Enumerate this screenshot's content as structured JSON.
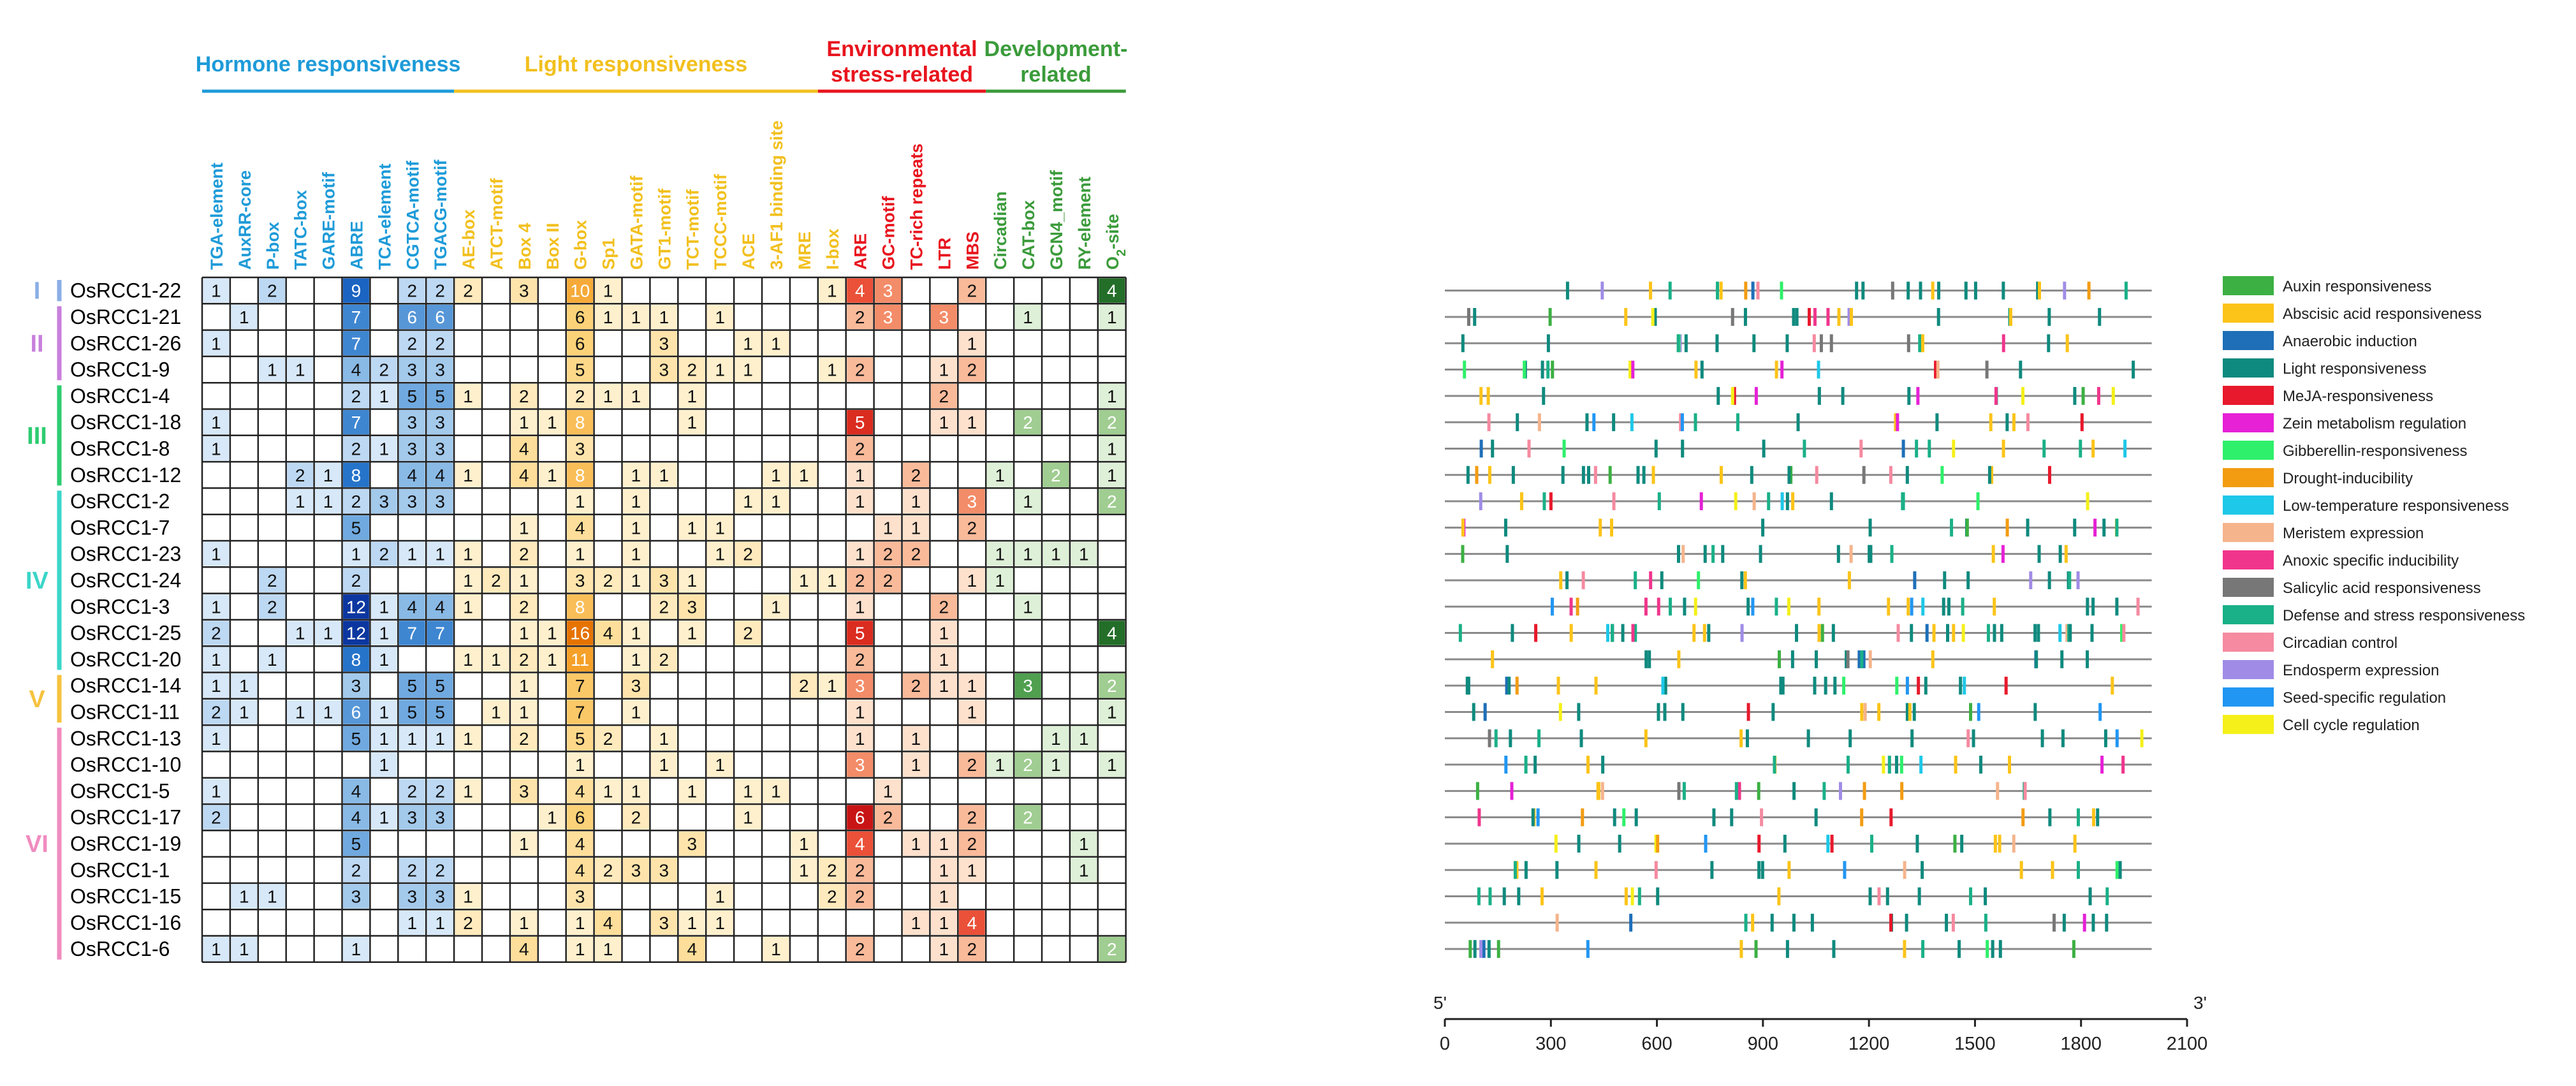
{
  "colors": {
    "hormone": "#1e9bd8",
    "light": "#f2c01e",
    "env": "#e8141e",
    "dev": "#3b9b3b",
    "row_text": "#000000"
  },
  "chart_data": {
    "type": "heatmap",
    "title": "",
    "categories": [
      {
        "name": "Hormone responsiveness",
        "lines": [
          "Hormone responsiveness"
        ],
        "color": "#1e9bd8",
        "start": 0,
        "end": 9
      },
      {
        "name": "Light responsiveness",
        "lines": [
          "Light responsiveness"
        ],
        "color": "#f2c01e",
        "start": 9,
        "end": 22
      },
      {
        "name": "Environmental stress-related",
        "lines": [
          "Environmental",
          "stress-related"
        ],
        "color": "#e8141e",
        "start": 22,
        "end": 28
      },
      {
        "name": "Development-related",
        "lines": [
          "Development-",
          "related"
        ],
        "color": "#3b9b3b",
        "start": 28,
        "end": 33
      }
    ],
    "columns": [
      {
        "label": "TGA-element",
        "group": "hormone"
      },
      {
        "label": "AuxRR-core",
        "group": "hormone"
      },
      {
        "label": "P-box",
        "group": "hormone"
      },
      {
        "label": "TATC-box",
        "group": "hormone"
      },
      {
        "label": "GARE-motif",
        "group": "hormone"
      },
      {
        "label": "ABRE",
        "group": "hormone"
      },
      {
        "label": "TCA-element",
        "group": "hormone"
      },
      {
        "label": "CGTCA-motif",
        "group": "hormone"
      },
      {
        "label": "TGACG-motif",
        "group": "hormone"
      },
      {
        "label": "AE-box",
        "group": "light"
      },
      {
        "label": "ATCT-motif",
        "group": "light"
      },
      {
        "label": "Box 4",
        "group": "light"
      },
      {
        "label": "Box II",
        "group": "light"
      },
      {
        "label": "G-box",
        "group": "light"
      },
      {
        "label": "Sp1",
        "group": "light"
      },
      {
        "label": "GATA-motif",
        "group": "light"
      },
      {
        "label": "GT1-motif",
        "group": "light"
      },
      {
        "label": "TCT-motif",
        "group": "light"
      },
      {
        "label": "TCCC-motif",
        "group": "light"
      },
      {
        "label": "ACE",
        "group": "light"
      },
      {
        "label": "3-AF1 binding site",
        "group": "light"
      },
      {
        "label": "MRE",
        "group": "light"
      },
      {
        "label": "I-box",
        "group": "light"
      },
      {
        "label": "ARE",
        "group": "env"
      },
      {
        "label": "GC-motif",
        "group": "env"
      },
      {
        "label": "TC-rich repeats",
        "group": "env"
      },
      {
        "label": "LTR",
        "group": "env"
      },
      {
        "label": "MBS",
        "group": "env"
      },
      {
        "label": "Circadian",
        "group": "dev"
      },
      {
        "label": "CAT-box",
        "group": "dev"
      },
      {
        "label": "GCN4_motif",
        "group": "dev"
      },
      {
        "label": "RY-element",
        "group": "dev"
      },
      {
        "label": "O₂-site",
        "group": "dev"
      }
    ],
    "groups": [
      {
        "label": "I",
        "start": 0,
        "end": 1,
        "color": "#8aaee6"
      },
      {
        "label": "II",
        "start": 1,
        "end": 4,
        "color": "#c880dc"
      },
      {
        "label": "III",
        "start": 4,
        "end": 8,
        "color": "#2ecc71"
      },
      {
        "label": "IV",
        "start": 8,
        "end": 15,
        "color": "#3ad6c8"
      },
      {
        "label": "V",
        "start": 15,
        "end": 17,
        "color": "#f6c23e"
      },
      {
        "label": "VI",
        "start": 17,
        "end": 26,
        "color": "#f08cc0"
      }
    ],
    "rows": [
      {
        "gene": "OsRCC1-22",
        "values": [
          1,
          0,
          2,
          0,
          0,
          9,
          0,
          2,
          2,
          2,
          0,
          3,
          0,
          10,
          1,
          0,
          0,
          0,
          0,
          0,
          0,
          0,
          1,
          4,
          3,
          0,
          0,
          2,
          0,
          0,
          0,
          0,
          4
        ]
      },
      {
        "gene": "OsRCC1-21",
        "values": [
          0,
          1,
          0,
          0,
          0,
          7,
          0,
          6,
          6,
          0,
          0,
          0,
          0,
          6,
          1,
          1,
          1,
          0,
          1,
          0,
          0,
          0,
          0,
          2,
          3,
          0,
          3,
          0,
          0,
          1,
          0,
          0,
          1
        ]
      },
      {
        "gene": "OsRCC1-26",
        "values": [
          1,
          0,
          0,
          0,
          0,
          7,
          0,
          2,
          2,
          0,
          0,
          0,
          0,
          6,
          0,
          0,
          3,
          0,
          0,
          1,
          1,
          0,
          0,
          0,
          0,
          0,
          0,
          1,
          0,
          0,
          0,
          0,
          0
        ]
      },
      {
        "gene": "OsRCC1-9",
        "values": [
          0,
          0,
          1,
          1,
          0,
          4,
          2,
          3,
          3,
          0,
          0,
          0,
          0,
          5,
          0,
          0,
          3,
          2,
          1,
          1,
          0,
          0,
          1,
          2,
          0,
          0,
          1,
          2,
          0,
          0,
          0,
          0,
          0
        ]
      },
      {
        "gene": "OsRCC1-4",
        "values": [
          0,
          0,
          0,
          0,
          0,
          2,
          1,
          5,
          5,
          1,
          0,
          2,
          0,
          2,
          1,
          1,
          0,
          1,
          0,
          0,
          0,
          0,
          0,
          0,
          0,
          0,
          2,
          0,
          0,
          0,
          0,
          0,
          1
        ]
      },
      {
        "gene": "OsRCC1-18",
        "values": [
          1,
          0,
          0,
          0,
          0,
          7,
          0,
          3,
          3,
          0,
          0,
          1,
          1,
          8,
          0,
          0,
          0,
          1,
          0,
          0,
          0,
          0,
          0,
          5,
          0,
          0,
          1,
          1,
          0,
          2,
          0,
          0,
          2
        ]
      },
      {
        "gene": "OsRCC1-8",
        "values": [
          1,
          0,
          0,
          0,
          0,
          2,
          1,
          3,
          3,
          0,
          0,
          4,
          0,
          3,
          0,
          0,
          0,
          0,
          0,
          0,
          0,
          0,
          0,
          2,
          0,
          0,
          0,
          0,
          0,
          0,
          0,
          0,
          1
        ]
      },
      {
        "gene": "OsRCC1-12",
        "values": [
          0,
          0,
          0,
          2,
          1,
          8,
          0,
          4,
          4,
          1,
          0,
          4,
          1,
          8,
          0,
          1,
          1,
          0,
          0,
          0,
          1,
          1,
          0,
          1,
          0,
          2,
          0,
          0,
          1,
          0,
          2,
          0,
          1
        ]
      },
      {
        "gene": "OsRCC1-2",
        "values": [
          0,
          0,
          0,
          1,
          1,
          2,
          3,
          3,
          3,
          0,
          0,
          0,
          0,
          1,
          0,
          1,
          0,
          0,
          0,
          1,
          1,
          0,
          0,
          1,
          0,
          1,
          0,
          3,
          0,
          1,
          0,
          0,
          2
        ]
      },
      {
        "gene": "OsRCC1-7",
        "values": [
          0,
          0,
          0,
          0,
          0,
          5,
          0,
          0,
          0,
          0,
          0,
          1,
          0,
          4,
          0,
          1,
          0,
          1,
          1,
          0,
          0,
          0,
          0,
          0,
          1,
          1,
          0,
          2,
          0,
          0,
          0,
          0,
          0
        ]
      },
      {
        "gene": "OsRCC1-23",
        "values": [
          1,
          0,
          0,
          0,
          0,
          1,
          2,
          1,
          1,
          1,
          0,
          2,
          0,
          1,
          0,
          1,
          0,
          0,
          1,
          2,
          0,
          0,
          0,
          1,
          2,
          2,
          0,
          0,
          1,
          1,
          1,
          1,
          0
        ]
      },
      {
        "gene": "OsRCC1-24",
        "values": [
          0,
          0,
          2,
          0,
          0,
          2,
          0,
          0,
          0,
          1,
          2,
          1,
          0,
          3,
          2,
          1,
          3,
          1,
          0,
          0,
          0,
          1,
          1,
          2,
          2,
          0,
          0,
          1,
          1,
          0,
          0,
          0,
          0
        ]
      },
      {
        "gene": "OsRCC1-3",
        "values": [
          1,
          0,
          2,
          0,
          0,
          12,
          1,
          4,
          4,
          1,
          0,
          2,
          0,
          8,
          0,
          0,
          2,
          3,
          0,
          0,
          1,
          0,
          0,
          1,
          0,
          0,
          2,
          0,
          0,
          1,
          0,
          0,
          0
        ]
      },
      {
        "gene": "OsRCC1-25",
        "values": [
          2,
          0,
          0,
          1,
          1,
          12,
          1,
          7,
          7,
          0,
          0,
          1,
          1,
          16,
          4,
          1,
          0,
          1,
          0,
          2,
          0,
          0,
          0,
          5,
          0,
          0,
          1,
          0,
          0,
          0,
          0,
          0,
          4
        ]
      },
      {
        "gene": "OsRCC1-20",
        "values": [
          1,
          0,
          1,
          0,
          0,
          8,
          1,
          0,
          0,
          1,
          1,
          2,
          1,
          11,
          0,
          1,
          2,
          0,
          0,
          0,
          0,
          0,
          0,
          2,
          0,
          0,
          1,
          0,
          0,
          0,
          0,
          0,
          0
        ]
      },
      {
        "gene": "OsRCC1-14",
        "values": [
          1,
          1,
          0,
          0,
          0,
          3,
          0,
          5,
          5,
          0,
          0,
          1,
          0,
          7,
          0,
          3,
          0,
          0,
          0,
          0,
          0,
          2,
          1,
          3,
          0,
          2,
          1,
          1,
          0,
          3,
          0,
          0,
          2
        ]
      },
      {
        "gene": "OsRCC1-11",
        "values": [
          2,
          1,
          0,
          1,
          1,
          6,
          1,
          5,
          5,
          0,
          1,
          1,
          0,
          7,
          0,
          1,
          0,
          0,
          0,
          0,
          0,
          0,
          0,
          1,
          0,
          0,
          0,
          1,
          0,
          0,
          0,
          0,
          1
        ]
      },
      {
        "gene": "OsRCC1-13",
        "values": [
          1,
          0,
          0,
          0,
          0,
          5,
          1,
          1,
          1,
          1,
          0,
          2,
          0,
          5,
          2,
          0,
          1,
          0,
          0,
          0,
          0,
          0,
          0,
          1,
          0,
          1,
          0,
          0,
          0,
          0,
          1,
          1,
          0
        ]
      },
      {
        "gene": "OsRCC1-10",
        "values": [
          0,
          0,
          0,
          0,
          0,
          0,
          1,
          0,
          0,
          0,
          0,
          0,
          0,
          1,
          0,
          0,
          1,
          0,
          1,
          0,
          0,
          0,
          0,
          3,
          0,
          1,
          0,
          2,
          1,
          2,
          1,
          0,
          1
        ]
      },
      {
        "gene": "OsRCC1-5",
        "values": [
          1,
          0,
          0,
          0,
          0,
          4,
          0,
          2,
          2,
          1,
          0,
          3,
          0,
          4,
          1,
          1,
          0,
          1,
          0,
          1,
          1,
          0,
          0,
          0,
          1,
          0,
          0,
          0,
          0,
          0,
          0,
          0,
          0
        ]
      },
      {
        "gene": "OsRCC1-17",
        "values": [
          2,
          0,
          0,
          0,
          0,
          4,
          1,
          3,
          3,
          0,
          0,
          0,
          1,
          6,
          0,
          2,
          0,
          0,
          0,
          1,
          0,
          0,
          0,
          6,
          2,
          0,
          0,
          2,
          0,
          2,
          0,
          0,
          0
        ]
      },
      {
        "gene": "OsRCC1-19",
        "values": [
          0,
          0,
          0,
          0,
          0,
          5,
          0,
          0,
          0,
          0,
          0,
          1,
          0,
          4,
          0,
          0,
          0,
          3,
          0,
          0,
          0,
          1,
          0,
          4,
          0,
          1,
          1,
          2,
          0,
          0,
          0,
          1,
          0
        ]
      },
      {
        "gene": "OsRCC1-1",
        "values": [
          0,
          0,
          0,
          0,
          0,
          2,
          0,
          2,
          2,
          0,
          0,
          0,
          0,
          4,
          2,
          3,
          3,
          0,
          0,
          0,
          0,
          1,
          2,
          2,
          0,
          0,
          1,
          1,
          0,
          0,
          0,
          1,
          0
        ]
      },
      {
        "gene": "OsRCC1-15",
        "values": [
          0,
          1,
          1,
          0,
          0,
          3,
          0,
          3,
          3,
          1,
          0,
          0,
          0,
          3,
          0,
          0,
          0,
          0,
          1,
          0,
          0,
          0,
          2,
          2,
          0,
          0,
          1,
          0,
          0,
          0,
          0,
          0,
          0
        ]
      },
      {
        "gene": "OsRCC1-16",
        "values": [
          0,
          0,
          0,
          0,
          0,
          0,
          0,
          1,
          1,
          2,
          0,
          1,
          0,
          1,
          4,
          0,
          3,
          1,
          1,
          0,
          0,
          0,
          0,
          0,
          0,
          1,
          1,
          4,
          0,
          0,
          0,
          0,
          0
        ]
      },
      {
        "gene": "OsRCC1-6",
        "values": [
          1,
          1,
          0,
          0,
          0,
          1,
          0,
          0,
          0,
          0,
          0,
          4,
          0,
          1,
          1,
          0,
          0,
          4,
          0,
          0,
          1,
          0,
          0,
          2,
          0,
          0,
          1,
          2,
          0,
          0,
          0,
          0,
          2
        ]
      }
    ],
    "promoter_map": {
      "xlabel_left": "5'",
      "xlabel_right": "3'",
      "axis_min": 0,
      "axis_max": 2100,
      "sequence_length": 2000,
      "ticks": [
        0,
        300,
        600,
        900,
        1200,
        1500,
        1800,
        2100
      ],
      "legend": [
        {
          "label": "Auxin responsiveness",
          "color": "#3cb043"
        },
        {
          "label": "Abscisic acid responsiveness",
          "color": "#fcc419"
        },
        {
          "label": "Anaerobic induction",
          "color": "#1e6fb8"
        },
        {
          "label": "Light responsiveness",
          "color": "#0f8a7e"
        },
        {
          "label": "MeJA-responsiveness",
          "color": "#e8192c"
        },
        {
          "label": "Zein metabolism regulation",
          "color": "#e621d6"
        },
        {
          "label": "Gibberellin-responsiveness",
          "color": "#2ef06a"
        },
        {
          "label": "Drought-inducibility",
          "color": "#f39c12"
        },
        {
          "label": "Low-temperature responsiveness",
          "color": "#1ec8e8"
        },
        {
          "label": "Meristem expression",
          "color": "#f5b48c"
        },
        {
          "label": "Anoxic specific inducibility",
          "color": "#f0368c"
        },
        {
          "label": "Salicylic acid responsiveness",
          "color": "#777777"
        },
        {
          "label": "Defense and stress responsiveness",
          "color": "#1ab088"
        },
        {
          "label": "Circadian control",
          "color": "#f58aa0"
        },
        {
          "label": "Endosperm expression",
          "color": "#a08ce6"
        },
        {
          "label": "Seed-specific regulation",
          "color": "#2196f3"
        },
        {
          "label": "Cell cycle regulation",
          "color": "#f5f019"
        }
      ]
    }
  }
}
